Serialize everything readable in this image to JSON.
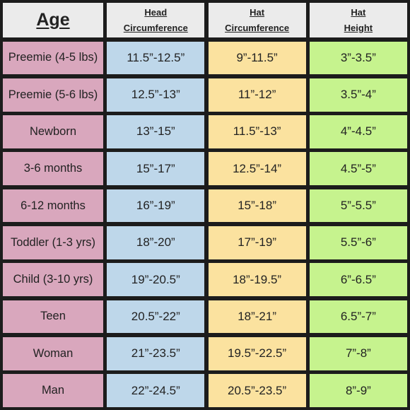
{
  "headers": {
    "age": "Age",
    "head_line1": "Head",
    "head_line2": "Circumference",
    "hat_line1": "Hat",
    "hat_line2": "Circumference",
    "height_line1": "Hat",
    "height_line2": "Height"
  },
  "rows": [
    {
      "age": "Preemie (4-5 lbs)",
      "head": "11.5”-12.5”",
      "hat": "9”-11.5”",
      "height": "3”-3.5”"
    },
    {
      "age": "Preemie (5-6 lbs)",
      "head": "12.5”-13”",
      "hat": "11”-12”",
      "height": "3.5”-4”"
    },
    {
      "age": "Newborn",
      "head": "13”-15”",
      "hat": "11.5”-13”",
      "height": "4”-4.5”"
    },
    {
      "age": "3-6 months",
      "head": "15”-17”",
      "hat": "12.5”-14”",
      "height": "4.5”-5”"
    },
    {
      "age": "6-12 months",
      "head": "16”-19”",
      "hat": "15”-18”",
      "height": "5”-5.5”"
    },
    {
      "age": "Toddler (1-3 yrs)",
      "head": "18”-20”",
      "hat": "17”-19”",
      "height": "5.5”-6”"
    },
    {
      "age": "Child (3-10 yrs)",
      "head": "19”-20.5”",
      "hat": "18”-19.5”",
      "height": "6”-6.5”"
    },
    {
      "age": "Teen",
      "head": "20.5”-22”",
      "hat": "18”-21”",
      "height": "6.5”-7”"
    },
    {
      "age": "Woman",
      "head": "21”-23.5”",
      "hat": "19.5”-22.5”",
      "height": "7”-8”"
    },
    {
      "age": "Man",
      "head": "22”-24.5”",
      "hat": "20.5”-23.5”",
      "height": "8”-9”"
    }
  ]
}
